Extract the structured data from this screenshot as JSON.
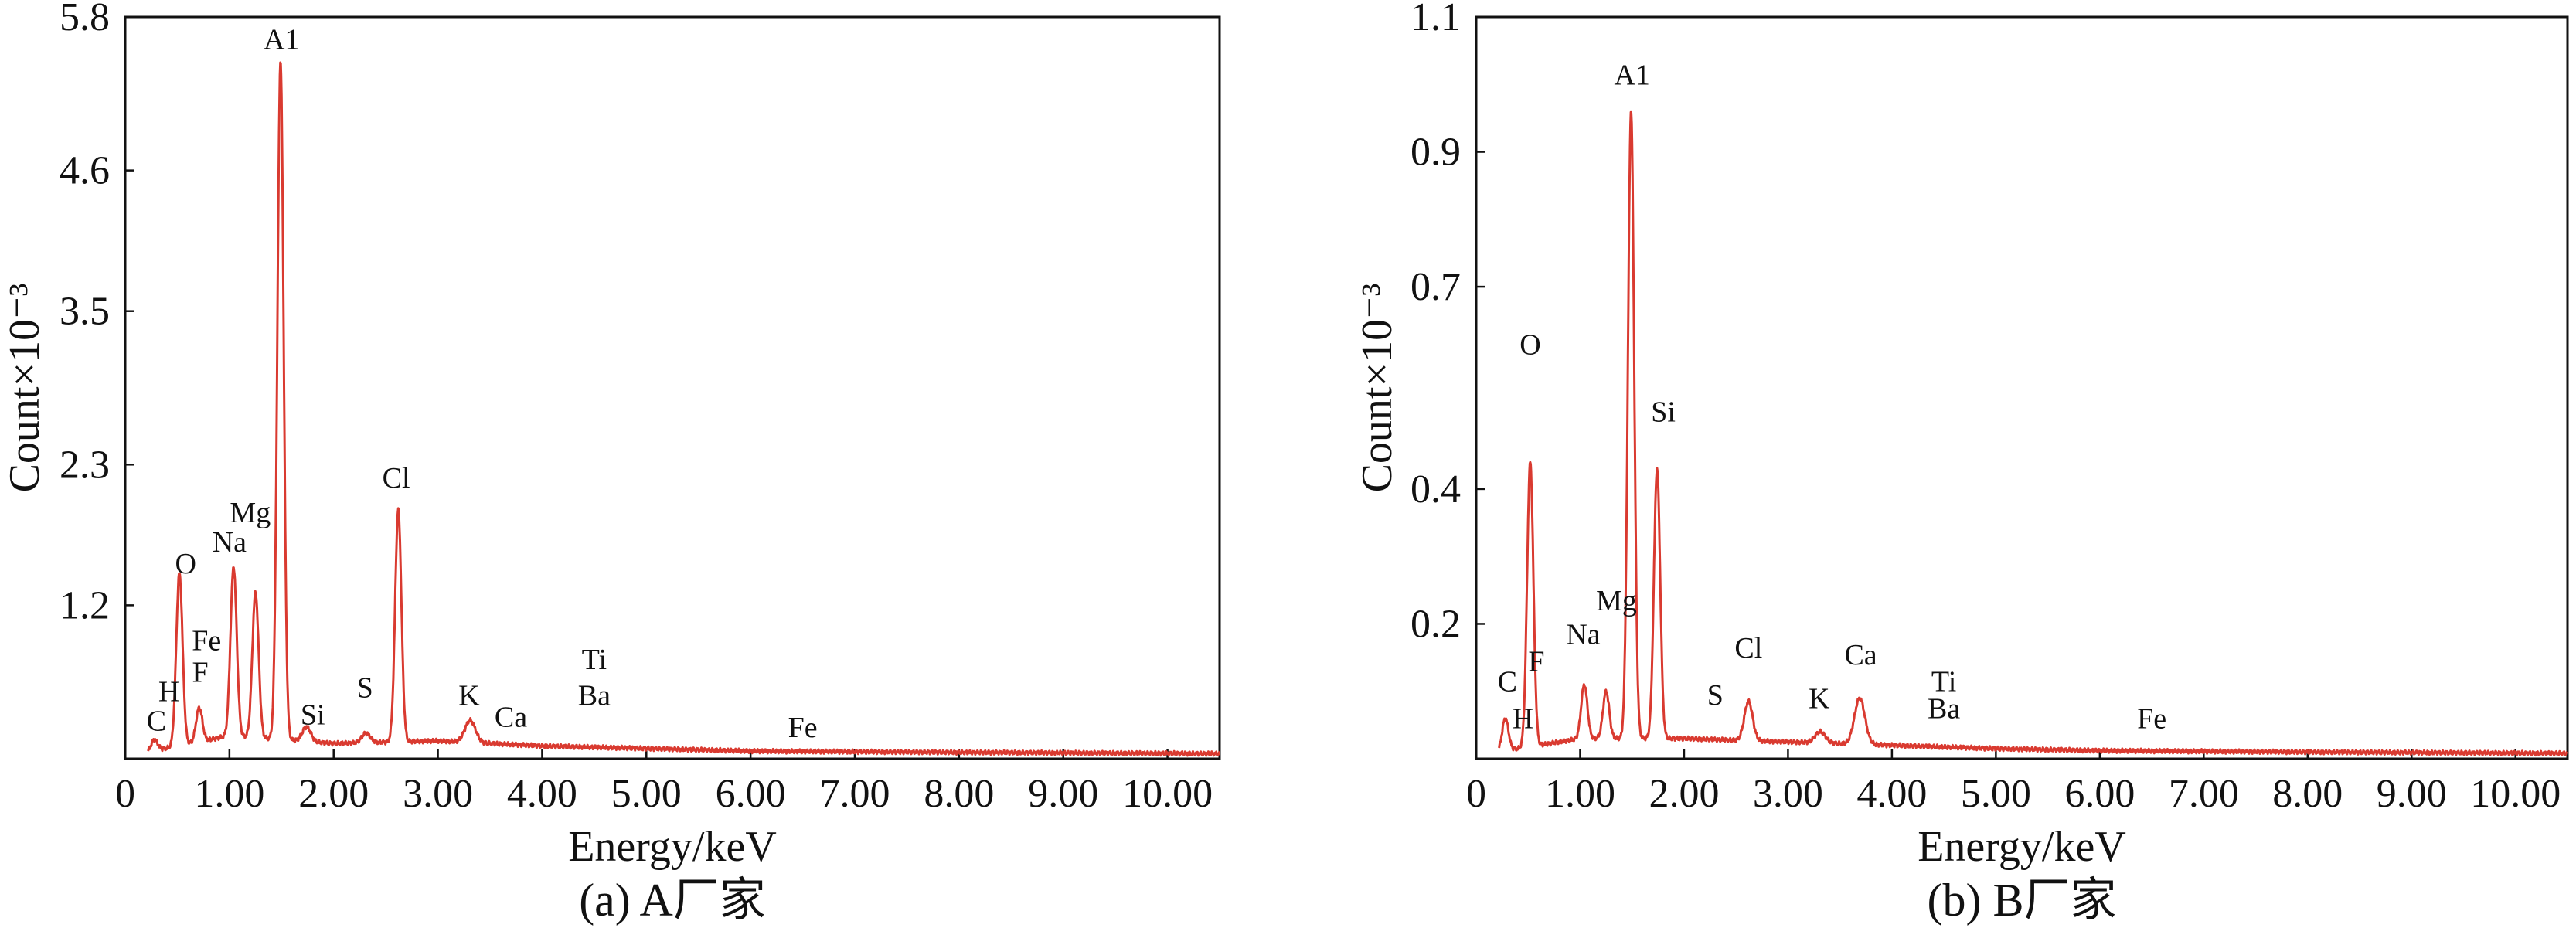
{
  "chart_data": [
    {
      "type": "line",
      "caption": "(a) A厂家",
      "xlabel": "Energy/keV",
      "ylabel": "Count×10⁻³",
      "xlim": [
        0,
        10.5
      ],
      "ylim": [
        0,
        5.8
      ],
      "x_ticks": [
        {
          "v": 0,
          "label": "0"
        },
        {
          "v": 1,
          "label": "1.00"
        },
        {
          "v": 2,
          "label": "2.00"
        },
        {
          "v": 3,
          "label": "3.00"
        },
        {
          "v": 4,
          "label": "4.00"
        },
        {
          "v": 5,
          "label": "5.00"
        },
        {
          "v": 6,
          "label": "6.00"
        },
        {
          "v": 7,
          "label": "7.00"
        },
        {
          "v": 8,
          "label": "8.00"
        },
        {
          "v": 9,
          "label": "9.00"
        },
        {
          "v": 10,
          "label": "10.00"
        }
      ],
      "y_ticks": [
        {
          "v": 1.2,
          "label": "1.2"
        },
        {
          "v": 2.3,
          "label": "2.3"
        },
        {
          "v": 3.5,
          "label": "3.5"
        },
        {
          "v": 4.6,
          "label": "4.6"
        },
        {
          "v": 5.8,
          "label": "5.8"
        }
      ],
      "series": [
        {
          "color": "#d93a30",
          "baseline": [
            [
              0.2,
              0.05
            ],
            [
              1.0,
              0.18
            ],
            [
              2.0,
              0.12
            ],
            [
              3.0,
              0.14
            ],
            [
              4.0,
              0.1
            ],
            [
              5.0,
              0.08
            ],
            [
              6.0,
              0.06
            ],
            [
              8.0,
              0.05
            ],
            [
              10.5,
              0.04
            ]
          ],
          "peaks": [
            {
              "x": 0.28,
              "y": 0.15,
              "w": 0.03
            },
            {
              "x": 0.52,
              "y": 1.45,
              "w": 0.03
            },
            {
              "x": 0.71,
              "y": 0.4,
              "w": 0.03
            },
            {
              "x": 1.04,
              "y": 1.5,
              "w": 0.03
            },
            {
              "x": 1.25,
              "y": 1.3,
              "w": 0.03
            },
            {
              "x": 1.49,
              "y": 5.45,
              "w": 0.03
            },
            {
              "x": 1.74,
              "y": 0.25,
              "w": 0.04
            },
            {
              "x": 2.31,
              "y": 0.2,
              "w": 0.04
            },
            {
              "x": 2.62,
              "y": 1.95,
              "w": 0.03
            },
            {
              "x": 3.31,
              "y": 0.3,
              "w": 0.05
            },
            {
              "x": 3.69,
              "y": 0.07,
              "w": 0.05
            },
            {
              "x": 4.51,
              "y": 0.06,
              "w": 0.05
            },
            {
              "x": 6.4,
              "y": 0.04,
              "w": 0.05
            }
          ]
        }
      ],
      "peak_labels": [
        {
          "text": "C",
          "x": 0.3,
          "y": 0.22
        },
        {
          "text": "H",
          "x": 0.42,
          "y": 0.45
        },
        {
          "text": "O",
          "x": 0.58,
          "y": 1.45
        },
        {
          "text": "Fe",
          "x": 0.78,
          "y": 0.85
        },
        {
          "text": "F",
          "x": 0.72,
          "y": 0.6
        },
        {
          "text": "Na",
          "x": 1.0,
          "y": 1.62
        },
        {
          "text": "Mg",
          "x": 1.2,
          "y": 1.85
        },
        {
          "text": "A1",
          "x": 1.5,
          "y": 5.55
        },
        {
          "text": "Si",
          "x": 1.8,
          "y": 0.27
        },
        {
          "text": "S",
          "x": 2.3,
          "y": 0.48
        },
        {
          "text": "Cl",
          "x": 2.6,
          "y": 2.12
        },
        {
          "text": "K",
          "x": 3.3,
          "y": 0.42
        },
        {
          "text": "Ca",
          "x": 3.7,
          "y": 0.25
        },
        {
          "text": "Ti",
          "x": 4.5,
          "y": 0.7
        },
        {
          "text": "Ba",
          "x": 4.5,
          "y": 0.42
        },
        {
          "text": "Fe",
          "x": 6.5,
          "y": 0.17
        }
      ]
    },
    {
      "type": "line",
      "caption": "(b) B厂家",
      "xlabel": "Energy/keV",
      "ylabel": "Count×10⁻³",
      "xlim": [
        0,
        10.5
      ],
      "ylim": [
        0,
        1.1
      ],
      "x_ticks": [
        {
          "v": 0,
          "label": "0"
        },
        {
          "v": 1,
          "label": "1.00"
        },
        {
          "v": 2,
          "label": "2.00"
        },
        {
          "v": 3,
          "label": "3.00"
        },
        {
          "v": 4,
          "label": "4.00"
        },
        {
          "v": 5,
          "label": "5.00"
        },
        {
          "v": 6,
          "label": "6.00"
        },
        {
          "v": 7,
          "label": "7.00"
        },
        {
          "v": 8,
          "label": "8.00"
        },
        {
          "v": 9,
          "label": "9.00"
        },
        {
          "v": 10,
          "label": "10.00"
        }
      ],
      "y_ticks": [
        {
          "v": 0.2,
          "label": "0.2"
        },
        {
          "v": 0.4,
          "label": "0.4"
        },
        {
          "v": 0.7,
          "label": "0.7"
        },
        {
          "v": 0.9,
          "label": "0.9"
        },
        {
          "v": 1.1,
          "label": "1.1"
        }
      ],
      "series": [
        {
          "color": "#d93a30",
          "baseline": [
            [
              0.2,
              0.01
            ],
            [
              1.0,
              0.03
            ],
            [
              2.0,
              0.03
            ],
            [
              3.0,
              0.025
            ],
            [
              4.0,
              0.02
            ],
            [
              5.0,
              0.015
            ],
            [
              6.0,
              0.012
            ],
            [
              8.0,
              0.01
            ],
            [
              10.5,
              0.008
            ]
          ],
          "peaks": [
            {
              "x": 0.28,
              "y": 0.06,
              "w": 0.03
            },
            {
              "x": 0.52,
              "y": 0.44,
              "w": 0.03
            },
            {
              "x": 1.04,
              "y": 0.11,
              "w": 0.03
            },
            {
              "x": 1.25,
              "y": 0.1,
              "w": 0.03
            },
            {
              "x": 1.49,
              "y": 0.96,
              "w": 0.03
            },
            {
              "x": 1.74,
              "y": 0.43,
              "w": 0.03
            },
            {
              "x": 2.31,
              "y": 0.025,
              "w": 0.04
            },
            {
              "x": 2.62,
              "y": 0.085,
              "w": 0.04
            },
            {
              "x": 3.31,
              "y": 0.04,
              "w": 0.05
            },
            {
              "x": 3.69,
              "y": 0.09,
              "w": 0.05
            },
            {
              "x": 4.51,
              "y": 0.007,
              "w": 0.05
            },
            {
              "x": 6.4,
              "y": 0.004,
              "w": 0.05
            }
          ]
        }
      ],
      "peak_labels": [
        {
          "text": "C",
          "x": 0.3,
          "y": 0.1
        },
        {
          "text": "H",
          "x": 0.45,
          "y": 0.045
        },
        {
          "text": "O",
          "x": 0.52,
          "y": 0.6
        },
        {
          "text": "F",
          "x": 0.58,
          "y": 0.13
        },
        {
          "text": "Na",
          "x": 1.03,
          "y": 0.17
        },
        {
          "text": "Mg",
          "x": 1.35,
          "y": 0.22
        },
        {
          "text": "A1",
          "x": 1.5,
          "y": 1.0
        },
        {
          "text": "Si",
          "x": 1.8,
          "y": 0.5
        },
        {
          "text": "S",
          "x": 2.3,
          "y": 0.08
        },
        {
          "text": "Cl",
          "x": 2.62,
          "y": 0.15
        },
        {
          "text": "K",
          "x": 3.3,
          "y": 0.075
        },
        {
          "text": "Ca",
          "x": 3.7,
          "y": 0.14
        },
        {
          "text": "Ti",
          "x": 4.5,
          "y": 0.1
        },
        {
          "text": "Ba",
          "x": 4.5,
          "y": 0.06
        },
        {
          "text": "Fe",
          "x": 6.5,
          "y": 0.045
        }
      ]
    }
  ]
}
